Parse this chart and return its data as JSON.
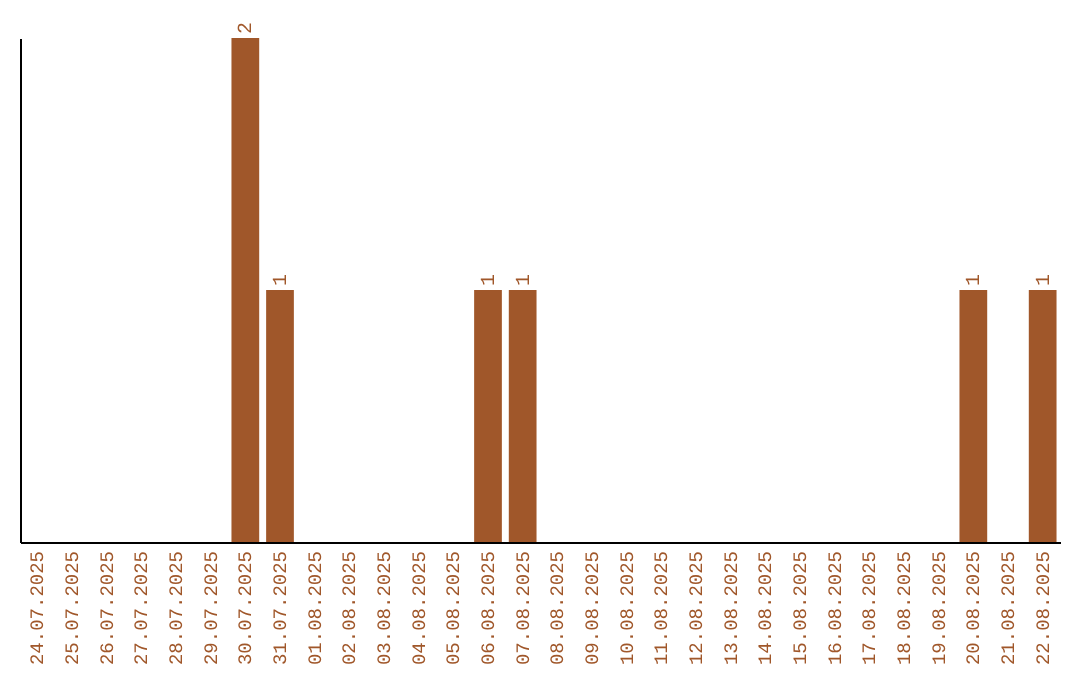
{
  "chart_data": {
    "type": "bar",
    "categories": [
      "24.07.2025",
      "25.07.2025",
      "26.07.2025",
      "27.07.2025",
      "28.07.2025",
      "29.07.2025",
      "30.07.2025",
      "31.07.2025",
      "01.08.2025",
      "02.08.2025",
      "03.08.2025",
      "04.08.2025",
      "05.08.2025",
      "06.08.2025",
      "07.08.2025",
      "08.08.2025",
      "09.08.2025",
      "10.08.2025",
      "11.08.2025",
      "12.08.2025",
      "13.08.2025",
      "14.08.2025",
      "15.08.2025",
      "16.08.2025",
      "17.08.2025",
      "18.08.2025",
      "19.08.2025",
      "20.08.2025",
      "21.08.2025",
      "22.08.2025"
    ],
    "values": [
      0,
      0,
      0,
      0,
      0,
      0,
      2,
      1,
      0,
      0,
      0,
      0,
      0,
      1,
      1,
      0,
      0,
      0,
      0,
      0,
      0,
      0,
      0,
      0,
      0,
      0,
      0,
      1,
      0,
      1
    ],
    "value_labels": [
      null,
      null,
      null,
      null,
      null,
      null,
      "2",
      "1",
      null,
      null,
      null,
      null,
      null,
      "1",
      "1",
      null,
      null,
      null,
      null,
      null,
      null,
      null,
      null,
      null,
      null,
      null,
      null,
      "1",
      null,
      "1"
    ],
    "color": "#a0572a",
    "grid": false,
    "tick_labels": "x"
  }
}
